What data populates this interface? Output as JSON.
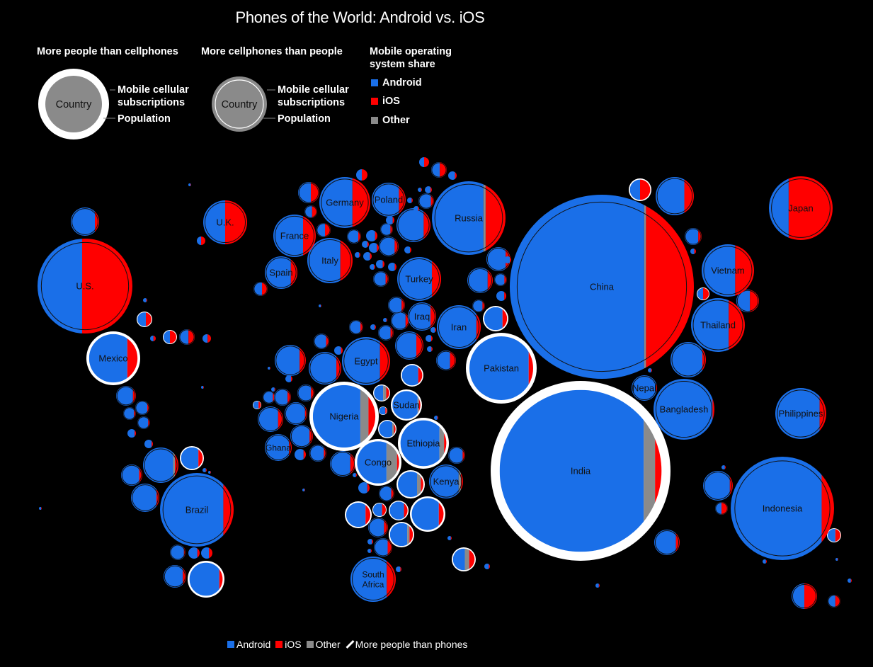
{
  "title": "Phones of the World: Android vs. iOS",
  "legend": {
    "more_people_head": "More people than cellphones",
    "more_phones_head": "More cellphones than people",
    "os_head_1": "Mobile operating",
    "os_head_2": "system share",
    "country": "Country",
    "subs_1": "Mobile cellular",
    "subs_2": "subscriptions",
    "population": "Population",
    "android": "Android",
    "ios": "iOS",
    "other": "Other"
  },
  "footer": {
    "android": "Android",
    "ios": "iOS",
    "other": "Other",
    "more_people": "More people than phones"
  },
  "colors": {
    "android": "#1a6fe8",
    "ios": "#ff0000",
    "other": "#8a8a8a",
    "background": "#000000"
  },
  "chart_data": {
    "type": "bubble-map",
    "series": [
      "Android",
      "iOS",
      "Other"
    ],
    "bubbles": [
      {
        "label": "China",
        "android": 0.73,
        "ios": 0.26,
        "other": 0.01,
        "more_people": false
      },
      {
        "label": "India",
        "android": 0.89,
        "ios": 0.04,
        "other": 0.07,
        "more_people": true
      },
      {
        "label": "U.S.",
        "android": 0.47,
        "ios": 0.53,
        "other": 0.0,
        "more_people": false
      },
      {
        "label": "Indonesia",
        "android": 0.88,
        "ios": 0.12,
        "other": 0.0,
        "more_people": false
      },
      {
        "label": "Brazil",
        "android": 0.86,
        "ios": 0.14,
        "other": 0.0,
        "more_people": false
      },
      {
        "label": "Nigeria",
        "android": 0.76,
        "ios": 0.11,
        "other": 0.13,
        "more_people": true
      },
      {
        "label": "Pakistan",
        "android": 0.93,
        "ios": 0.07,
        "other": 0.0,
        "more_people": true
      },
      {
        "label": "Russia",
        "android": 0.7,
        "ios": 0.27,
        "other": 0.03,
        "more_people": false
      },
      {
        "label": "Bangladesh",
        "android": 0.97,
        "ios": 0.03,
        "other": 0.0,
        "more_people": false
      },
      {
        "label": "Japan",
        "android": 0.31,
        "ios": 0.69,
        "other": 0.0,
        "more_people": false
      },
      {
        "label": "Mexico",
        "android": 0.79,
        "ios": 0.21,
        "other": 0.0,
        "more_people": true
      },
      {
        "label": "Philippines",
        "android": 0.87,
        "ios": 0.13,
        "other": 0.0,
        "more_people": false
      },
      {
        "label": "Vietnam",
        "android": 0.64,
        "ios": 0.36,
        "other": 0.0,
        "more_people": false
      },
      {
        "label": "Ethiopia",
        "android": 0.85,
        "ios": 0.05,
        "other": 0.1,
        "more_people": true
      },
      {
        "label": "Egypt",
        "android": 0.79,
        "ios": 0.21,
        "other": 0.0,
        "more_people": false
      },
      {
        "label": "Germany",
        "android": 0.65,
        "ios": 0.35,
        "other": 0.0,
        "more_people": false
      },
      {
        "label": "Iran",
        "android": 0.9,
        "ios": 0.1,
        "other": 0.0,
        "more_people": false
      },
      {
        "label": "Turkey",
        "android": 0.79,
        "ios": 0.21,
        "other": 0.0,
        "more_people": false
      },
      {
        "label": "Congo",
        "android": 0.7,
        "ios": 0.05,
        "other": 0.25,
        "more_people": true
      },
      {
        "label": "Thailand",
        "android": 0.7,
        "ios": 0.3,
        "other": 0.0,
        "more_people": false
      },
      {
        "label": "France",
        "android": 0.7,
        "ios": 0.3,
        "other": 0.0,
        "more_people": false
      },
      {
        "label": "U.K.",
        "android": 0.5,
        "ios": 0.5,
        "other": 0.0,
        "more_people": false
      },
      {
        "label": "Italy",
        "android": 0.73,
        "ios": 0.27,
        "other": 0.0,
        "more_people": false
      },
      {
        "label": "South Africa",
        "android": 0.8,
        "ios": 0.2,
        "other": 0.0,
        "more_people": false
      },
      {
        "label": "Kenya",
        "android": 0.87,
        "ios": 0.06,
        "other": 0.07,
        "more_people": false
      },
      {
        "label": "Spain",
        "android": 0.8,
        "ios": 0.2,
        "other": 0.0,
        "more_people": false
      },
      {
        "label": "Poland",
        "android": 0.8,
        "ios": 0.2,
        "other": 0.0,
        "more_people": false
      },
      {
        "label": "Sudan",
        "android": 0.9,
        "ios": 0.05,
        "other": 0.05,
        "more_people": true
      },
      {
        "label": "Iraq",
        "android": 0.8,
        "ios": 0.2,
        "other": 0.0,
        "more_people": false
      },
      {
        "label": "Ghana",
        "android": 0.9,
        "ios": 0.1,
        "other": 0.0,
        "more_people": false
      },
      {
        "label": "Nepal",
        "android": 0.97,
        "ios": 0.03,
        "other": 0.0,
        "more_people": false
      },
      {
        "label": "",
        "android": 0.85,
        "ios": 0.15,
        "other": 0.0,
        "more_people": false
      }
    ]
  }
}
